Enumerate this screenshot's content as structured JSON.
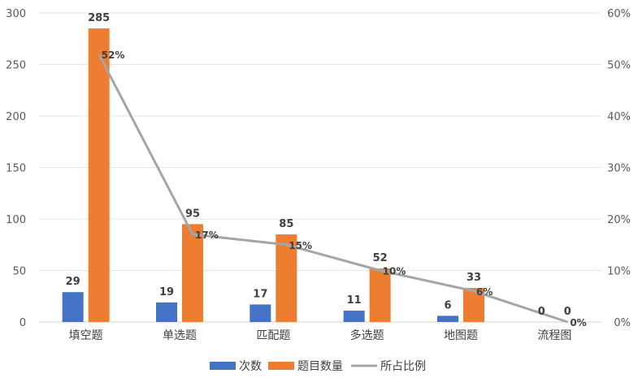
{
  "chart_data": {
    "type": "bar",
    "categories": [
      "填空题",
      "单选题",
      "匹配题",
      "多选题",
      "地图题",
      "流程图"
    ],
    "series": [
      {
        "name": "次数",
        "type": "bar",
        "axis": "left",
        "values": [
          29,
          19,
          17,
          11,
          6,
          0
        ],
        "labels": [
          "29",
          "19",
          "17",
          "11",
          "6",
          "0"
        ],
        "color": "#4472C4"
      },
      {
        "name": "题目数量",
        "type": "bar",
        "axis": "left",
        "values": [
          285,
          95,
          85,
          52,
          33,
          0
        ],
        "labels": [
          "285",
          "95",
          "85",
          "52",
          "33",
          "0"
        ],
        "color": "#ED7D31"
      },
      {
        "name": "所占比例",
        "type": "line",
        "axis": "right",
        "values": [
          52,
          17,
          15,
          10,
          6,
          0
        ],
        "labels": [
          "52%",
          "17%",
          "15%",
          "10%",
          "6%",
          "0%"
        ],
        "color": "#A5A5A5"
      }
    ],
    "y_left": {
      "ylim": [
        0,
        300
      ],
      "ticks": [
        "0",
        "50",
        "100",
        "150",
        "200",
        "250",
        "300"
      ]
    },
    "y_right": {
      "ylim": [
        0,
        60
      ],
      "ticks": [
        "0%",
        "10%",
        "20%",
        "30%",
        "40%",
        "50%",
        "60%"
      ]
    },
    "grid": true,
    "legend_position": "bottom",
    "title": "",
    "xlabel": "",
    "ylabel": ""
  }
}
